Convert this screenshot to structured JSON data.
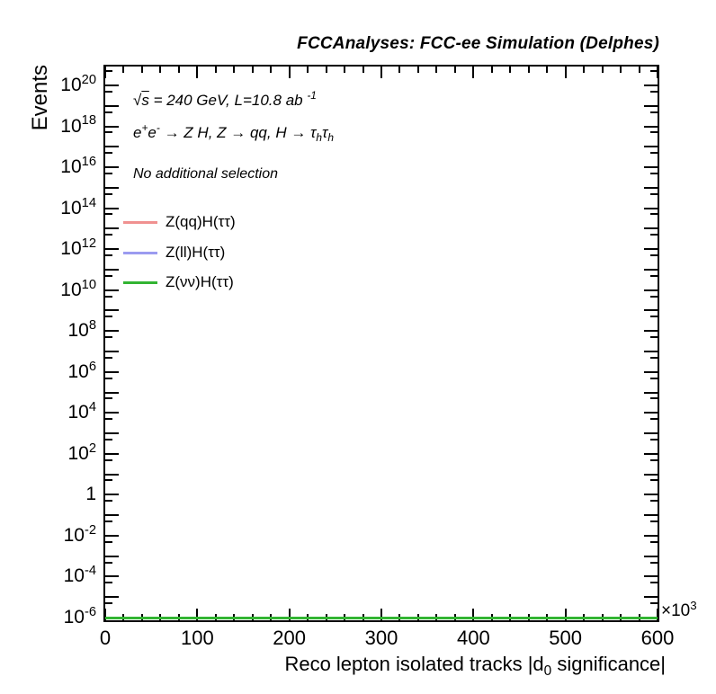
{
  "chart_data": {
    "type": "line",
    "title": "FCCAnalyses: FCC-ee Simulation (Delphes)",
    "xlabel": "Reco lepton isolated tracks |d0 significance|",
    "ylabel": "Events",
    "grid": false,
    "legend_position": "upper-left inside plot",
    "x_axis": {
      "min": 0,
      "max": 600,
      "major_step": 100,
      "minor_step": 20,
      "tick_labels": [
        "0",
        "100",
        "200",
        "300",
        "400",
        "500",
        "600"
      ],
      "multiplier_text": "×10³",
      "multiplier_segments": [
        {
          "t": "×10"
        },
        {
          "t": "3",
          "sup": true
        }
      ],
      "title_segments": [
        {
          "t": "Reco lepton isolated tracks |d"
        },
        {
          "t": "0",
          "sub": true
        },
        {
          "t": " significance|"
        }
      ]
    },
    "y_axis": {
      "scale": "log",
      "min": 1e-06,
      "max": 1e+21,
      "min_exp": -6,
      "max_exp": 20,
      "label_step": 2,
      "title": "Events"
    },
    "annotations": {
      "energy": {
        "text": "√s = 240 GeV, L=10.8 ab⁻¹",
        "segments": [
          {
            "t": "√"
          },
          {
            "t": "s",
            "ov": true
          },
          {
            "t": " = 240 GeV, L=10.8 ab "
          },
          {
            "t": "-1",
            "sup": true
          }
        ]
      },
      "process": {
        "text": "e⁺e⁻ → Z H, Z → qq, H → τhτh",
        "segments": [
          {
            "t": "e"
          },
          {
            "t": "+",
            "sup": true
          },
          {
            "t": "e"
          },
          {
            "t": "-",
            "sup": true
          },
          {
            "t": " → Z H, Z  → qq, H  → "
          },
          {
            "t": "τ"
          },
          {
            "t": "h",
            "sub": true
          },
          {
            "t": "τ"
          },
          {
            "t": "h",
            "sub": true
          }
        ]
      },
      "selection": {
        "text": "No additional selection",
        "segments": [
          {
            "t": "No additional selection"
          }
        ]
      }
    },
    "series": [
      {
        "name": "Z(qq)H(ττ)",
        "color": "#f09190",
        "x": [
          0,
          600000
        ],
        "y": [
          1e-06,
          1e-06
        ],
        "visible_in_plot": false,
        "note": "flat at plot minimum, hidden behind other curves"
      },
      {
        "name": "Z(ll)H(ττ)",
        "color": "#9b9bf0",
        "x": [
          0,
          600000
        ],
        "y": [
          1e-06,
          1e-06
        ],
        "visible_in_plot": false,
        "note": "flat at plot minimum, hidden behind green curve"
      },
      {
        "name": "Z(νν)H(ττ)",
        "color": "#32b432",
        "x": [
          0,
          600000
        ],
        "y": [
          1e-06,
          1e-06
        ],
        "visible_in_plot": true,
        "note": "flat green line along bottom edge of plot"
      }
    ]
  }
}
